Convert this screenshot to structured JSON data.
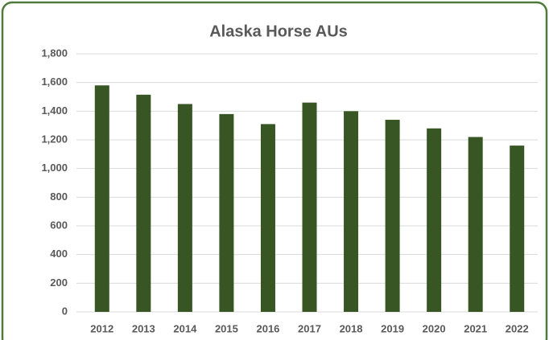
{
  "chart_data": {
    "type": "bar",
    "title": "Alaska Horse AUs",
    "categories": [
      "2012",
      "2013",
      "2014",
      "2015",
      "2016",
      "2017",
      "2018",
      "2019",
      "2020",
      "2021",
      "2022"
    ],
    "values": [
      1580,
      1515,
      1450,
      1380,
      1310,
      1460,
      1400,
      1340,
      1280,
      1220,
      1160
    ],
    "color": "#375623",
    "ylim": [
      0,
      1800
    ],
    "yticks": [
      0,
      200,
      400,
      600,
      800,
      {
        "value": 1000,
        "label": "1,000"
      },
      {
        "value": 1200,
        "label": "1,200"
      },
      {
        "value": 1400,
        "label": "1,400"
      },
      {
        "value": 1600,
        "label": "1,600"
      },
      {
        "value": 1800,
        "label": "1,800"
      }
    ],
    "grid": true
  }
}
